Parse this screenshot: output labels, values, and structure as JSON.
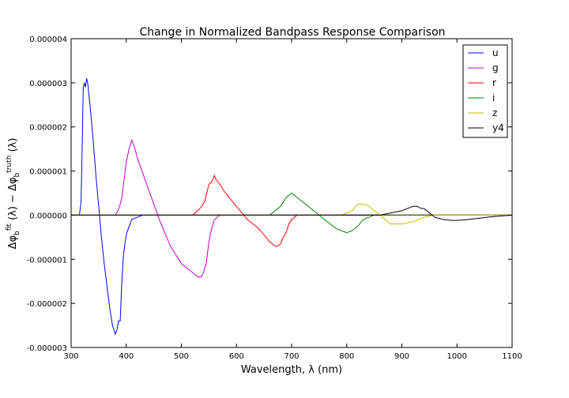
{
  "chart_data": {
    "type": "line",
    "title": "Change in Normalized Bandpass Response Comparison",
    "xlabel": "Wavelength, λ (nm)",
    "ylabel": "Δφ_b^fit (λ) − Δφ_b^truth (λ)",
    "xlim": [
      300,
      1100
    ],
    "ylim": [
      -3e-06,
      4e-06
    ],
    "xticks": [
      300,
      400,
      500,
      600,
      700,
      800,
      900,
      1000,
      1100
    ],
    "xtick_labels": [
      "300",
      "400",
      "500",
      "600",
      "700",
      "800",
      "900",
      "1000",
      "1100"
    ],
    "yticks": [
      4e-06,
      3e-06,
      2e-06,
      1e-06,
      0.0,
      -1e-06,
      -2e-06,
      -3e-06
    ],
    "ytick_labels": [
      "0.000004",
      "0.000003",
      "0.000002",
      "0.000001",
      "0.000000",
      "-0.000001",
      "-0.000002",
      "-0.000003"
    ],
    "grid": false,
    "legend_position": "top-right",
    "series": [
      {
        "name": "u",
        "color": "#0000ff",
        "x": [
          300,
          315,
          318,
          320,
          322,
          324,
          326,
          328,
          330,
          335,
          340,
          345,
          350,
          355,
          360,
          365,
          370,
          375,
          380,
          383,
          386,
          389,
          392,
          395,
          398,
          401,
          404,
          410,
          420,
          430,
          440,
          460,
          500,
          1100
        ],
        "y": [
          0,
          0,
          3e-07,
          1.5e-06,
          2.9e-06,
          3e-06,
          2.9e-06,
          3.1e-06,
          3e-06,
          2.4e-06,
          1.7e-06,
          9e-07,
          2e-07,
          -5e-07,
          -1.1e-06,
          -1.6e-06,
          -2.1e-06,
          -2.5e-06,
          -2.7e-06,
          -2.6e-06,
          -2.4e-06,
          -2.4e-06,
          -1.5e-06,
          -9e-07,
          -6e-07,
          -4e-07,
          -3e-07,
          -1e-07,
          -5e-08,
          0,
          0,
          0,
          0,
          0
        ]
      },
      {
        "name": "g",
        "color": "#bf00bf",
        "x": [
          300,
          380,
          385,
          388,
          392,
          396,
          400,
          405,
          410,
          413,
          416,
          420,
          440,
          460,
          480,
          500,
          520,
          530,
          536,
          540,
          545,
          550,
          555,
          560,
          565,
          570,
          580,
          600,
          1100
        ],
        "y": [
          0,
          0,
          1e-07,
          2e-07,
          4e-07,
          8e-07,
          1.2e-06,
          1.5e-06,
          1.7e-06,
          1.6e-06,
          1.5e-06,
          1.3e-06,
          6e-07,
          -1e-07,
          -7e-07,
          -1.1e-06,
          -1.3e-06,
          -1.4e-06,
          -1.4e-06,
          -1.3e-06,
          -1.1e-06,
          -6e-07,
          -3e-07,
          -1e-07,
          -5e-08,
          0,
          0,
          0,
          0
        ]
      },
      {
        "name": "r",
        "color": "#ff0000",
        "x": [
          300,
          520,
          530,
          537,
          542,
          546,
          550,
          555,
          560,
          563,
          567,
          580,
          600,
          620,
          640,
          660,
          670,
          675,
          680,
          685,
          690,
          695,
          700,
          710,
          720,
          1100
        ],
        "y": [
          0,
          0,
          1e-07,
          2e-07,
          3e-07,
          5e-07,
          7e-07,
          7.5e-07,
          9e-07,
          8e-07,
          7.5e-07,
          5e-07,
          2e-07,
          -1e-07,
          -3e-07,
          -6e-07,
          -7e-07,
          -7e-07,
          -6.5e-07,
          -5e-07,
          -4e-07,
          -2e-07,
          -1e-07,
          0,
          0,
          0
        ]
      },
      {
        "name": "i",
        "color": "#007f00",
        "x": [
          300,
          660,
          670,
          680,
          690,
          700,
          710,
          720,
          740,
          760,
          770,
          780,
          790,
          800,
          810,
          820,
          830,
          840,
          850,
          860,
          1100
        ],
        "y": [
          0,
          0,
          1e-07,
          2e-07,
          4e-07,
          5e-07,
          4e-07,
          3e-07,
          1e-07,
          -1e-07,
          -2e-07,
          -3e-07,
          -3.5e-07,
          -4e-07,
          -3.5e-07,
          -2.5e-07,
          -1e-07,
          -5e-08,
          0,
          0,
          0
        ]
      },
      {
        "name": "z",
        "color": "#bfbf00",
        "x": [
          300,
          780,
          790,
          800,
          810,
          820,
          830,
          840,
          860,
          880,
          900,
          920,
          940,
          960,
          1100
        ],
        "y": [
          0,
          0,
          0,
          5e-08,
          1e-07,
          2.5e-07,
          2.5e-07,
          2e-07,
          0,
          -2e-07,
          -2e-07,
          -1.5e-07,
          -5e-08,
          0,
          0
        ]
      },
      {
        "name": "y4",
        "color": "#000000",
        "x": [
          300,
          860,
          880,
          900,
          910,
          920,
          928,
          935,
          940,
          950,
          960,
          975,
          990,
          1000,
          1020,
          1040,
          1060,
          1080,
          1100
        ],
        "y": [
          0,
          0,
          5e-08,
          1e-07,
          1.5e-07,
          2e-07,
          2e-07,
          1.5e-07,
          1.5e-07,
          5e-08,
          -5e-08,
          -1e-07,
          -1.2e-07,
          -1.2e-07,
          -1e-07,
          -7e-08,
          -4e-08,
          -2e-08,
          0
        ]
      }
    ]
  }
}
